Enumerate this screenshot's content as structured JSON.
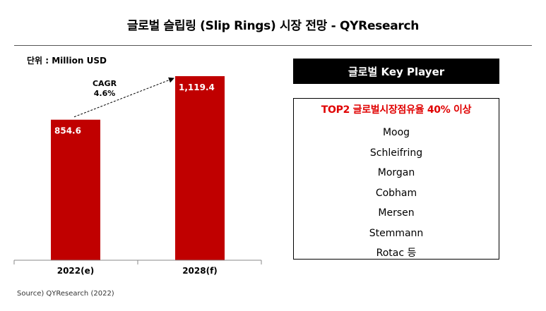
{
  "header": {
    "title": "글로벌 슬립링 (Slip Rings) 시장 전망 - QYResearch"
  },
  "unit_label": "단위 : Million USD",
  "source": "Source) QYResearch (2022)",
  "chart_data": {
    "type": "bar",
    "categories": [
      "2022(e)",
      "2028(f)"
    ],
    "values": [
      854.6,
      1119.4
    ],
    "value_labels": [
      "854.6",
      "1,119.4"
    ],
    "ylim": [
      0,
      1119.4
    ],
    "bar_color": "#c00000",
    "annotation": {
      "line1": "CAGR",
      "line2": "4.6%",
      "style": "dashed-arrow"
    },
    "grid": false,
    "legend": "none"
  },
  "key_players": {
    "header": "글로벌 Key Player",
    "top_note": "TOP2 글로벌시장점유율 40% 이상",
    "top_note_color": "#e00000",
    "companies": [
      "Moog",
      "Schleifring",
      "Morgan",
      "Cobham",
      "Mersen",
      "Stemmann",
      "Rotac 등"
    ]
  }
}
